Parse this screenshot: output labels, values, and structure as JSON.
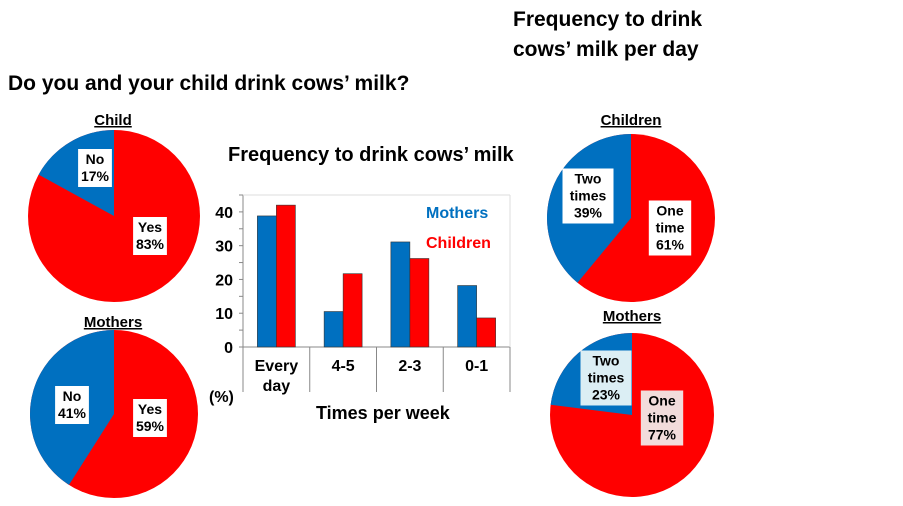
{
  "header": {
    "left_title": "Do you and your child drink cows’ milk?",
    "right_title_line1": "Frequency to drink",
    "right_title_line2": "cows’ milk per day"
  },
  "colors": {
    "blue": "#0070c0",
    "red": "#ff0000"
  },
  "chart_data": [
    {
      "type": "pie",
      "title": "Child",
      "slices": [
        {
          "label": "No",
          "value": 17,
          "text": "17%",
          "color": "#0070c0"
        },
        {
          "label": "Yes",
          "value": 83,
          "text": "83%",
          "color": "#ff0000"
        }
      ]
    },
    {
      "type": "pie",
      "title": "Mothers",
      "slices": [
        {
          "label": "No",
          "value": 41,
          "text": "41%",
          "color": "#0070c0"
        },
        {
          "label": "Yes",
          "value": 59,
          "text": "59%",
          "color": "#ff0000"
        }
      ]
    },
    {
      "type": "bar",
      "title": "Frequency to drink cows’ milk",
      "categories": [
        "Every day",
        "4-5",
        "2-3",
        "0-1"
      ],
      "series": [
        {
          "name": "Mothers",
          "values": [
            38.8,
            10.5,
            31.1,
            18.2
          ],
          "color": "#0070c0"
        },
        {
          "name": "Children",
          "values": [
            42,
            21.7,
            26.2,
            8.6
          ],
          "color": "#ff0000"
        }
      ],
      "xlabel": "Times per week",
      "ylabel": "(%)",
      "ylim": [
        0,
        45
      ],
      "yticks": [
        "0",
        "10",
        "20",
        "30",
        "40"
      ],
      "legend": "top-right",
      "grid": false
    },
    {
      "type": "pie",
      "title": "Children",
      "slices": [
        {
          "label": "Two times",
          "value": 39,
          "text": "39%",
          "color": "#0070c0"
        },
        {
          "label": "One time",
          "value": 61,
          "text": "61%",
          "color": "#ff0000"
        }
      ]
    },
    {
      "type": "pie",
      "title": "Mothers",
      "slices": [
        {
          "label": "Two times",
          "value": 23,
          "text": "23%",
          "color": "#0070c0"
        },
        {
          "label": "One time",
          "value": 77,
          "text": "77%",
          "color": "#ff0000"
        }
      ]
    }
  ]
}
